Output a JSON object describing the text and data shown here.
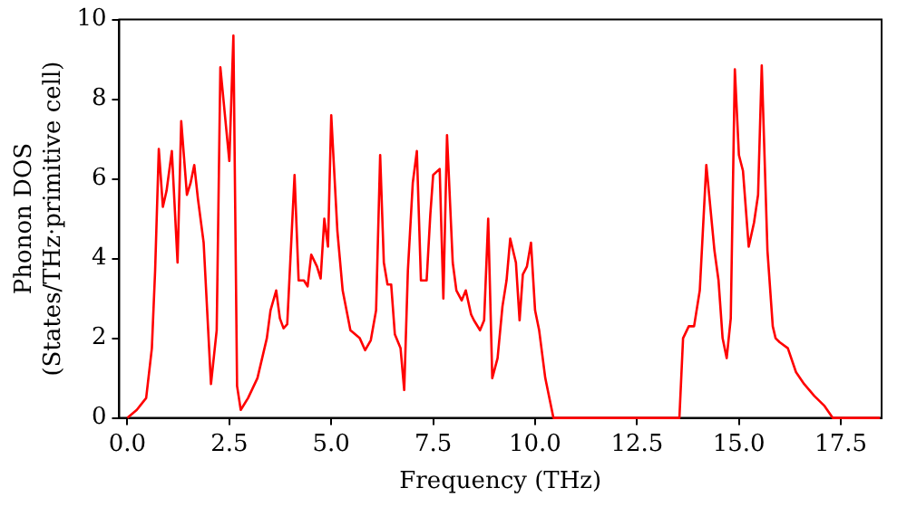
{
  "chart_data": {
    "type": "line",
    "xlabel": "Frequency (THz)",
    "ylabel": "Phonon DOS\n(States/THz·primitive cell)",
    "xlim": [
      -0.2,
      18.5
    ],
    "ylim": [
      0,
      10
    ],
    "xticks": [
      {
        "value": 0,
        "label": "0.0"
      },
      {
        "value": 2.5,
        "label": "2.5"
      },
      {
        "value": 5,
        "label": "5.0"
      },
      {
        "value": 7.5,
        "label": "7.5"
      },
      {
        "value": 10,
        "label": "10.0"
      },
      {
        "value": 12.5,
        "label": "12.5"
      },
      {
        "value": 15,
        "label": "15.0"
      },
      {
        "value": 17.5,
        "label": "17.5"
      }
    ],
    "yticks": [
      0,
      2,
      4,
      6,
      8,
      10
    ],
    "grid": false,
    "legend": false,
    "marker": "none",
    "line_style": "solid",
    "series": [
      {
        "color": "#ff0000",
        "x": [
          0,
          0.23,
          0.46,
          0.6,
          0.68,
          0.77,
          0.87,
          0.96,
          1.09,
          1.23,
          1.32,
          1.46,
          1.55,
          1.64,
          1.73,
          1.87,
          2.05,
          2.19,
          2.28,
          2.5,
          2.6,
          2.69,
          2.78,
          2.96,
          3.19,
          3.42,
          3.51,
          3.65,
          3.74,
          3.83,
          3.92,
          4.1,
          4.2,
          4.33,
          4.42,
          4.51,
          4.65,
          4.74,
          4.83,
          4.92,
          5.0,
          5.15,
          5.28,
          5.47,
          5.7,
          5.83,
          5.97,
          6.1,
          6.2,
          6.29,
          6.38,
          6.47,
          6.56,
          6.7,
          6.79,
          6.88,
          7.0,
          7.1,
          7.2,
          7.34,
          7.43,
          7.5,
          7.66,
          7.75,
          7.84,
          7.98,
          8.07,
          8.2,
          8.3,
          8.43,
          8.5,
          8.65,
          8.75,
          8.85,
          8.95,
          9.08,
          9.2,
          9.3,
          9.39,
          9.53,
          9.62,
          9.7,
          9.8,
          9.9,
          10.0,
          10.1,
          10.25,
          10.45,
          13.54,
          13.63,
          13.77,
          13.9,
          14.04,
          14.2,
          14.27,
          14.4,
          14.5,
          14.6,
          14.7,
          14.8,
          14.9,
          15.0,
          15.1,
          15.24,
          15.37,
          15.47,
          15.56,
          15.7,
          15.83,
          15.9,
          16.0,
          16.2,
          16.4,
          16.6,
          16.85,
          17.1,
          17.3,
          18.46
        ],
        "values": [
          0,
          0.2,
          0.5,
          1.75,
          3.7,
          6.75,
          5.3,
          5.7,
          6.7,
          3.9,
          7.45,
          5.6,
          5.9,
          6.35,
          5.5,
          4.4,
          0.85,
          2.2,
          8.8,
          6.45,
          9.6,
          0.8,
          0.2,
          0.5,
          1.0,
          2.0,
          2.7,
          3.2,
          2.5,
          2.25,
          2.35,
          6.1,
          3.45,
          3.45,
          3.3,
          4.1,
          3.8,
          3.5,
          5.0,
          4.3,
          7.6,
          4.7,
          3.2,
          2.2,
          2.0,
          1.7,
          1.95,
          2.7,
          6.6,
          3.9,
          3.35,
          3.35,
          2.1,
          1.75,
          0.7,
          3.7,
          5.9,
          6.7,
          3.45,
          3.45,
          5.1,
          6.1,
          6.25,
          3.0,
          7.1,
          3.9,
          3.2,
          2.95,
          3.2,
          2.6,
          2.45,
          2.2,
          2.45,
          5.0,
          1.0,
          1.5,
          2.8,
          3.45,
          4.5,
          3.9,
          2.45,
          3.6,
          3.8,
          4.4,
          2.7,
          2.2,
          1.0,
          0,
          0,
          2.0,
          2.3,
          2.3,
          3.2,
          6.35,
          5.6,
          4.2,
          3.45,
          2.0,
          1.5,
          2.5,
          8.75,
          6.6,
          6.2,
          4.3,
          4.9,
          5.6,
          8.85,
          4.2,
          2.3,
          2.0,
          1.9,
          1.75,
          1.15,
          0.85,
          0.55,
          0.3,
          0,
          0
        ]
      }
    ]
  }
}
